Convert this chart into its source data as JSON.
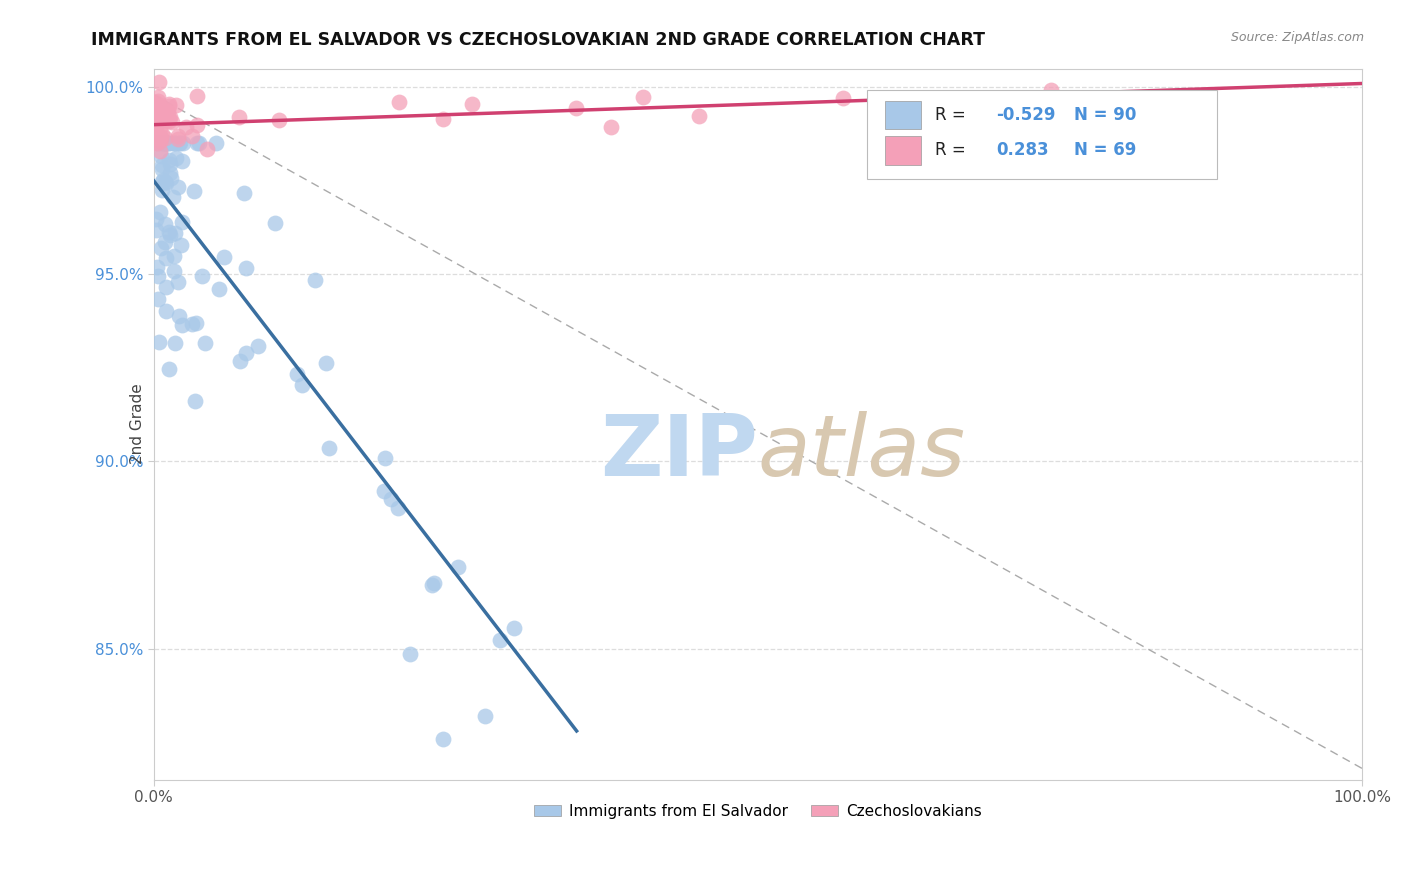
{
  "title": "IMMIGRANTS FROM EL SALVADOR VS CZECHOSLOVAKIAN 2ND GRADE CORRELATION CHART",
  "source": "Source: ZipAtlas.com",
  "ylabel": "2nd Grade",
  "legend_blue_R": "-0.529",
  "legend_blue_N": "90",
  "legend_pink_R": "0.283",
  "legend_pink_N": "69",
  "blue_color": "#a8c8e8",
  "pink_color": "#f4a0b8",
  "blue_line_color": "#3a6fa0",
  "pink_line_color": "#d04070",
  "watermark_zip_color": "#c0d8f0",
  "watermark_atlas_color": "#d8c8b0",
  "background_color": "#ffffff",
  "grid_color": "#dddddd",
  "right_tick_color": "#4a90d9",
  "xlim": [
    0.0,
    1.0
  ],
  "ylim": [
    0.815,
    1.005
  ],
  "yticks": [
    0.85,
    0.9,
    0.95,
    1.0
  ],
  "ytick_labels": [
    "85.0%",
    "90.0%",
    "95.0%",
    "100.0%"
  ],
  "xticks": [
    0.0,
    1.0
  ],
  "xtick_labels": [
    "0.0%",
    "100.0%"
  ]
}
